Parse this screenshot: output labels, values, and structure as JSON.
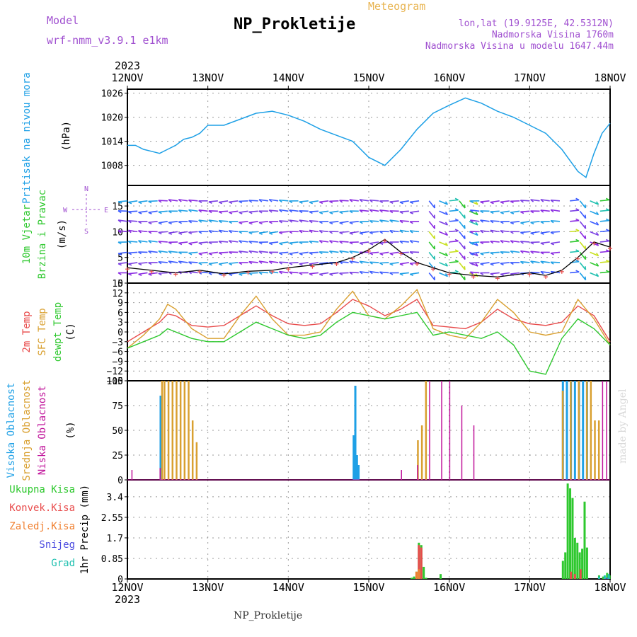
{
  "header": {
    "model_label": "Model",
    "model_value": "wrf-nmm_v3.9.1  e1km",
    "title": "NP_Prokletije",
    "subtitle": "Meteogram",
    "coords": "lon,lat (19.9125E, 42.5312N)",
    "elevation": "Nadmorska Visina 1760m",
    "model_elevation": "Nadmorska Visina u modelu 1647.44m"
  },
  "footer": {
    "station": "NP_Prokletije",
    "credit": "made by Angel"
  },
  "colors": {
    "pressure": "#1ea0e6",
    "temp2m": "#e84b4b",
    "sfc_temp": "#d9a030",
    "dewpt": "#2ec82e",
    "high_cloud": "#1ea0e6",
    "mid_cloud": "#d9a030",
    "low_cloud": "#c0139a",
    "total_precip": "#2ec82e",
    "conv_precip": "#e84b4b",
    "frozen_precip": "#f08030",
    "snow": "#4b4be0",
    "graupel": "#20c0b0",
    "wind_label": "#2ec82e",
    "wind_compass": "#a050d0",
    "header_purple": "#a050d0",
    "header_orange": "#e8b450"
  },
  "chart_data": [
    {
      "type": "line",
      "panel": "pressure",
      "title": "",
      "year": "2023",
      "x_ticks": [
        "12NOV",
        "13NOV",
        "14NOV",
        "15NOV",
        "16NOV",
        "17NOV",
        "18NOV"
      ],
      "ylabel": [
        "Pritisak na nivou mora",
        "(hPa)"
      ],
      "ylim": [
        1003,
        1027
      ],
      "y_ticks": [
        1008,
        1014,
        1020,
        1026
      ],
      "grid": true,
      "series": [
        {
          "name": "Pritisak na nivou mora",
          "x": [
            0,
            0.1,
            0.2,
            0.3,
            0.4,
            0.5,
            0.6,
            0.7,
            0.8,
            0.9,
            1,
            1.2,
            1.4,
            1.6,
            1.8,
            2,
            2.2,
            2.4,
            2.6,
            2.8,
            3,
            3.2,
            3.4,
            3.6,
            3.8,
            4,
            4.2,
            4.4,
            4.6,
            4.8,
            5,
            5.2,
            5.4,
            5.6,
            5.7,
            5.8,
            5.9,
            6
          ],
          "values": [
            1013,
            1013,
            1012,
            1011.5,
            1011,
            1012,
            1013,
            1014.5,
            1015,
            1016,
            1018,
            1018,
            1019.5,
            1021,
            1021.5,
            1020.5,
            1019,
            1017,
            1015.5,
            1014,
            1010,
            1008,
            1012,
            1017,
            1021,
            1023,
            1024.8,
            1023.5,
            1021.5,
            1020,
            1018,
            1016,
            1012,
            1006.5,
            1005,
            1011,
            1016,
            1018.5
          ]
        }
      ]
    },
    {
      "type": "scatter",
      "panel": "wind",
      "ylabel": [
        "10m Vjetar",
        "Brzina i Pravac",
        "(m/s)"
      ],
      "compass": [
        "N",
        "E",
        "W",
        "S"
      ],
      "ylim": [
        0,
        19
      ],
      "y_ticks": [
        0,
        5,
        10,
        15
      ],
      "grid": true,
      "series": [
        {
          "name": "speed",
          "x": [
            0,
            0.3,
            0.6,
            0.9,
            1.2,
            1.5,
            1.8,
            2,
            2.3,
            2.6,
            2.8,
            3,
            3.2,
            3.4,
            3.6,
            3.8,
            4,
            4.3,
            4.6,
            5,
            5.2,
            5.4,
            5.6,
            5.8,
            6
          ],
          "values": [
            3,
            2.5,
            2,
            2.5,
            1.8,
            2.3,
            2.5,
            3,
            3.5,
            4,
            5,
            6.5,
            8.5,
            6,
            4,
            3,
            2,
            1.5,
            1.2,
            2,
            1.5,
            2.5,
            5,
            8,
            7
          ]
        }
      ]
    },
    {
      "type": "line",
      "panel": "temperature",
      "ylabel": [
        "2m Temp",
        "SFC Temp",
        "dewpt Temp",
        "(C)"
      ],
      "ylim": [
        -15,
        15
      ],
      "y_ticks": [
        -15,
        -12,
        -9,
        -6,
        -3,
        0,
        3,
        6,
        9,
        12,
        15
      ],
      "grid": true,
      "x": [
        0,
        0.2,
        0.4,
        0.5,
        0.6,
        0.8,
        1,
        1.2,
        1.4,
        1.6,
        1.8,
        2,
        2.2,
        2.4,
        2.6,
        2.8,
        3,
        3.2,
        3.4,
        3.6,
        3.8,
        4,
        4.2,
        4.4,
        4.6,
        4.8,
        5,
        5.2,
        5.4,
        5.6,
        5.8,
        6
      ],
      "series": [
        {
          "name": "2m Temp",
          "values": [
            -3,
            0,
            3,
            5.5,
            5,
            2,
            1.5,
            2,
            5,
            8,
            5,
            2.5,
            2,
            2.5,
            6,
            10,
            8,
            5,
            7,
            10,
            2,
            1.5,
            1,
            3,
            7,
            4,
            2.5,
            2,
            3,
            8,
            5,
            -3
          ]
        },
        {
          "name": "SFC Temp",
          "values": [
            -5,
            -1,
            4,
            8.5,
            7,
            1,
            -2,
            -2,
            5,
            11,
            4,
            -1,
            -1,
            0,
            7,
            12.5,
            5,
            4,
            8,
            13,
            1,
            -1,
            -2,
            3,
            10,
            6,
            0,
            -1,
            0,
            10,
            4,
            -4
          ]
        },
        {
          "name": "dewpt Temp",
          "values": [
            -5,
            -3,
            -1,
            1,
            0,
            -2,
            -3,
            -3,
            0,
            3,
            1,
            -1,
            -2,
            -1,
            3,
            6,
            5,
            4,
            5,
            6,
            -1,
            0,
            -1,
            -2,
            0,
            -4,
            -12,
            -13,
            -2,
            4,
            1,
            -4
          ]
        }
      ]
    },
    {
      "type": "bar",
      "panel": "clouds",
      "ylabel": [
        "Visoka Oblacnost",
        "Srednja Oblacnost",
        "Niska Oblacnost",
        "(%)"
      ],
      "ylim": [
        0,
        100
      ],
      "y_ticks": [
        0,
        25,
        50,
        75,
        100
      ],
      "grid": true,
      "series": [
        {
          "name": "Visoka Oblacnost",
          "x": [
            0.4,
            2.8,
            2.82,
            2.84,
            2.86,
            5.4,
            5.45,
            5.5,
            5.55,
            5.6,
            5.65,
            5.7
          ],
          "values": [
            85,
            45,
            95,
            25,
            15,
            100,
            100,
            100,
            100,
            100,
            100,
            100
          ]
        },
        {
          "name": "Srednja Oblacnost",
          "x": [
            0.42,
            0.45,
            0.5,
            0.55,
            0.6,
            0.65,
            0.7,
            0.75,
            0.8,
            0.85,
            3.6,
            3.65,
            3.7,
            5.4,
            5.5,
            5.6,
            5.7,
            5.75,
            5.8,
            5.85
          ],
          "values": [
            100,
            100,
            100,
            100,
            100,
            100,
            100,
            100,
            60,
            38,
            40,
            55,
            100,
            90,
            100,
            100,
            100,
            100,
            60,
            60
          ]
        },
        {
          "name": "Niska Oblacnost",
          "x": [
            0.05,
            0.2,
            0.4,
            3.2,
            3.4,
            3.6,
            3.75,
            3.9,
            4,
            4.15,
            4.3,
            5.9,
            5.95
          ],
          "values": [
            10,
            5,
            12,
            5,
            10,
            15,
            100,
            100,
            100,
            75,
            55,
            100,
            100
          ]
        }
      ]
    },
    {
      "type": "bar",
      "panel": "precip",
      "ylabel": [
        "1hr Precip (mm)"
      ],
      "legend": [
        "Ukupna Kisa",
        "Konvek.Kisa",
        "Zaledj.Kisa",
        "Snijeg",
        "Grad"
      ],
      "ylim": [
        0,
        4.1
      ],
      "y_ticks": [
        0,
        0.85,
        1.7,
        2.55,
        3.4
      ],
      "y_tick_labels": [
        "0",
        "0.85",
        "1.7",
        "2.55",
        "3.4"
      ],
      "grid": true,
      "series": [
        {
          "name": "Ukupna Kisa",
          "x": [
            3.52,
            3.55,
            3.58,
            3.61,
            3.64,
            3.67,
            3.7,
            3.88,
            5.4,
            5.43,
            5.46,
            5.49,
            5.52,
            5.55,
            5.58,
            5.61,
            5.64,
            5.67,
            5.7,
            5.85,
            5.9,
            5.95,
            5.98
          ],
          "values": [
            0.05,
            0.1,
            0.3,
            1.5,
            1.4,
            0.5,
            0.05,
            0.2,
            0.75,
            1.1,
            3.95,
            3.75,
            3.35,
            1.7,
            1.5,
            1.1,
            1.25,
            3.2,
            1.3,
            0.15,
            0.1,
            0.25,
            0.15
          ]
        },
        {
          "name": "Konvek.Kisa",
          "x": [
            3.61,
            3.64,
            5.5,
            5.55,
            5.62
          ],
          "values": [
            1.4,
            1.3,
            0.3,
            0.2,
            0.4
          ]
        },
        {
          "name": "Zaledj.Kisa",
          "x": [
            3.58,
            3.61
          ],
          "values": [
            0.3,
            0.4
          ]
        },
        {
          "name": "Snijeg",
          "x": [
            5.95
          ],
          "values": [
            0.05
          ]
        },
        {
          "name": "Grad",
          "x": [
            5.85,
            5.92,
            5.97
          ],
          "values": [
            0.1,
            0.15,
            0.2
          ]
        }
      ]
    }
  ]
}
